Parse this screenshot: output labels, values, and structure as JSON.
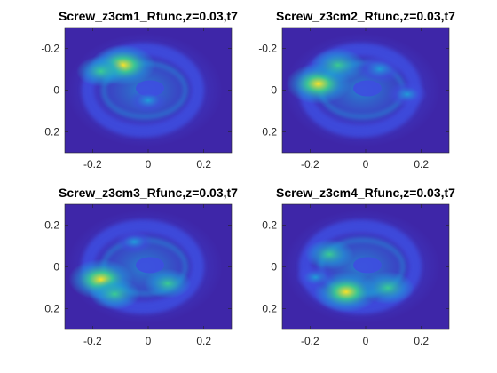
{
  "chart_data": [
    {
      "type": "heatmap",
      "title": "Screw_z3cm1_Rfunc,z=0.03,t7",
      "xlim": [
        -0.3,
        0.3
      ],
      "ylim": [
        -0.3,
        0.3
      ],
      "y_reversed": true,
      "xticks": [
        -0.2,
        0,
        0.2
      ],
      "xtick_labels": [
        "-0.2",
        "0",
        "0.2"
      ],
      "yticks": [
        -0.2,
        0,
        0.2
      ],
      "ytick_labels": [
        "-0.2",
        "0",
        "0.2"
      ],
      "colormap": "parula",
      "hotspots": [
        {
          "x": -0.09,
          "y": -0.12,
          "intensity": 1.0
        },
        {
          "x": -0.17,
          "y": -0.09,
          "intensity": 0.55
        },
        {
          "x": 0.0,
          "y": 0.05,
          "intensity": 0.25
        }
      ]
    },
    {
      "type": "heatmap",
      "title": "Screw_z3cm2_Rfunc,z=0.03,t7",
      "xlim": [
        -0.3,
        0.3
      ],
      "ylim": [
        -0.3,
        0.3
      ],
      "y_reversed": true,
      "xticks": [
        -0.2,
        0,
        0.2
      ],
      "xtick_labels": [
        "-0.2",
        "0",
        "0.2"
      ],
      "yticks": [
        -0.2,
        0,
        0.2
      ],
      "ytick_labels": [
        "-0.2",
        "0",
        "0.2"
      ],
      "colormap": "parula",
      "hotspots": [
        {
          "x": -0.17,
          "y": -0.03,
          "intensity": 1.0
        },
        {
          "x": -0.1,
          "y": -0.12,
          "intensity": 0.7
        },
        {
          "x": 0.05,
          "y": -0.1,
          "intensity": 0.45
        },
        {
          "x": 0.15,
          "y": 0.02,
          "intensity": 0.3
        }
      ]
    },
    {
      "type": "heatmap",
      "title": "Screw_z3cm3_Rfunc,z=0.03,t7",
      "xlim": [
        -0.3,
        0.3
      ],
      "ylim": [
        -0.3,
        0.3
      ],
      "y_reversed": true,
      "xticks": [
        -0.2,
        0,
        0.2
      ],
      "xtick_labels": [
        "-0.2",
        "0",
        "0.2"
      ],
      "yticks": [
        -0.2,
        0,
        0.2
      ],
      "ytick_labels": [
        "-0.2",
        "0",
        "0.2"
      ],
      "colormap": "parula",
      "hotspots": [
        {
          "x": -0.17,
          "y": 0.06,
          "intensity": 1.0
        },
        {
          "x": -0.12,
          "y": 0.13,
          "intensity": 0.6
        },
        {
          "x": 0.07,
          "y": 0.08,
          "intensity": 0.5
        },
        {
          "x": -0.05,
          "y": -0.12,
          "intensity": 0.2
        }
      ]
    },
    {
      "type": "heatmap",
      "title": "Screw_z3cm4_Rfunc,z=0.03,t7",
      "xlim": [
        -0.3,
        0.3
      ],
      "ylim": [
        -0.3,
        0.3
      ],
      "y_reversed": true,
      "xticks": [
        -0.2,
        0,
        0.2
      ],
      "xtick_labels": [
        "-0.2",
        "0",
        "0.2"
      ],
      "yticks": [
        -0.2,
        0,
        0.2
      ],
      "ytick_labels": [
        "-0.2",
        "0",
        "0.2"
      ],
      "colormap": "parula",
      "hotspots": [
        {
          "x": -0.07,
          "y": 0.12,
          "intensity": 1.0
        },
        {
          "x": 0.08,
          "y": 0.1,
          "intensity": 0.65
        },
        {
          "x": -0.13,
          "y": -0.06,
          "intensity": 0.55
        },
        {
          "x": -0.18,
          "y": 0.05,
          "intensity": 0.3
        }
      ]
    }
  ],
  "colors": {
    "background": "#3e26a8",
    "low": "#3e4ee0",
    "mid": "#1fa0d8",
    "high": "#3bd08f",
    "peak": "#f9e02a",
    "figure_bg": "#ffffff",
    "axis_line": "#262626"
  }
}
